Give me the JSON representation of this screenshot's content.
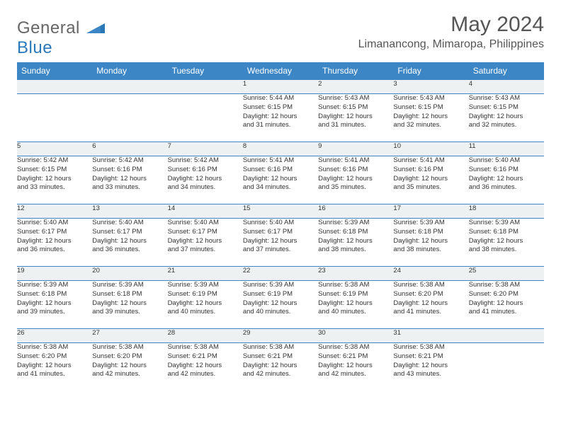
{
  "brand": {
    "part1": "General",
    "part2": "Blue"
  },
  "title": "May 2024",
  "location": "Limanancong, Mimaropa, Philippines",
  "colors": {
    "header_bg": "#3d86c6",
    "header_text": "#ffffff",
    "daynum_bg": "#eef1f2",
    "border": "#3d86c6",
    "text": "#333333",
    "title_text": "#555555"
  },
  "day_headers": [
    "Sunday",
    "Monday",
    "Tuesday",
    "Wednesday",
    "Thursday",
    "Friday",
    "Saturday"
  ],
  "weeks": [
    {
      "nums": [
        "",
        "",
        "",
        "1",
        "2",
        "3",
        "4"
      ],
      "details": [
        "",
        "",
        "",
        "Sunrise: 5:44 AM\nSunset: 6:15 PM\nDaylight: 12 hours\nand 31 minutes.",
        "Sunrise: 5:43 AM\nSunset: 6:15 PM\nDaylight: 12 hours\nand 31 minutes.",
        "Sunrise: 5:43 AM\nSunset: 6:15 PM\nDaylight: 12 hours\nand 32 minutes.",
        "Sunrise: 5:43 AM\nSunset: 6:15 PM\nDaylight: 12 hours\nand 32 minutes."
      ]
    },
    {
      "nums": [
        "5",
        "6",
        "7",
        "8",
        "9",
        "10",
        "11"
      ],
      "details": [
        "Sunrise: 5:42 AM\nSunset: 6:15 PM\nDaylight: 12 hours\nand 33 minutes.",
        "Sunrise: 5:42 AM\nSunset: 6:16 PM\nDaylight: 12 hours\nand 33 minutes.",
        "Sunrise: 5:42 AM\nSunset: 6:16 PM\nDaylight: 12 hours\nand 34 minutes.",
        "Sunrise: 5:41 AM\nSunset: 6:16 PM\nDaylight: 12 hours\nand 34 minutes.",
        "Sunrise: 5:41 AM\nSunset: 6:16 PM\nDaylight: 12 hours\nand 35 minutes.",
        "Sunrise: 5:41 AM\nSunset: 6:16 PM\nDaylight: 12 hours\nand 35 minutes.",
        "Sunrise: 5:40 AM\nSunset: 6:16 PM\nDaylight: 12 hours\nand 36 minutes."
      ]
    },
    {
      "nums": [
        "12",
        "13",
        "14",
        "15",
        "16",
        "17",
        "18"
      ],
      "details": [
        "Sunrise: 5:40 AM\nSunset: 6:17 PM\nDaylight: 12 hours\nand 36 minutes.",
        "Sunrise: 5:40 AM\nSunset: 6:17 PM\nDaylight: 12 hours\nand 36 minutes.",
        "Sunrise: 5:40 AM\nSunset: 6:17 PM\nDaylight: 12 hours\nand 37 minutes.",
        "Sunrise: 5:40 AM\nSunset: 6:17 PM\nDaylight: 12 hours\nand 37 minutes.",
        "Sunrise: 5:39 AM\nSunset: 6:18 PM\nDaylight: 12 hours\nand 38 minutes.",
        "Sunrise: 5:39 AM\nSunset: 6:18 PM\nDaylight: 12 hours\nand 38 minutes.",
        "Sunrise: 5:39 AM\nSunset: 6:18 PM\nDaylight: 12 hours\nand 38 minutes."
      ]
    },
    {
      "nums": [
        "19",
        "20",
        "21",
        "22",
        "23",
        "24",
        "25"
      ],
      "details": [
        "Sunrise: 5:39 AM\nSunset: 6:18 PM\nDaylight: 12 hours\nand 39 minutes.",
        "Sunrise: 5:39 AM\nSunset: 6:18 PM\nDaylight: 12 hours\nand 39 minutes.",
        "Sunrise: 5:39 AM\nSunset: 6:19 PM\nDaylight: 12 hours\nand 40 minutes.",
        "Sunrise: 5:39 AM\nSunset: 6:19 PM\nDaylight: 12 hours\nand 40 minutes.",
        "Sunrise: 5:38 AM\nSunset: 6:19 PM\nDaylight: 12 hours\nand 40 minutes.",
        "Sunrise: 5:38 AM\nSunset: 6:20 PM\nDaylight: 12 hours\nand 41 minutes.",
        "Sunrise: 5:38 AM\nSunset: 6:20 PM\nDaylight: 12 hours\nand 41 minutes."
      ]
    },
    {
      "nums": [
        "26",
        "27",
        "28",
        "29",
        "30",
        "31",
        ""
      ],
      "details": [
        "Sunrise: 5:38 AM\nSunset: 6:20 PM\nDaylight: 12 hours\nand 41 minutes.",
        "Sunrise: 5:38 AM\nSunset: 6:20 PM\nDaylight: 12 hours\nand 42 minutes.",
        "Sunrise: 5:38 AM\nSunset: 6:21 PM\nDaylight: 12 hours\nand 42 minutes.",
        "Sunrise: 5:38 AM\nSunset: 6:21 PM\nDaylight: 12 hours\nand 42 minutes.",
        "Sunrise: 5:38 AM\nSunset: 6:21 PM\nDaylight: 12 hours\nand 42 minutes.",
        "Sunrise: 5:38 AM\nSunset: 6:21 PM\nDaylight: 12 hours\nand 43 minutes.",
        ""
      ]
    }
  ]
}
